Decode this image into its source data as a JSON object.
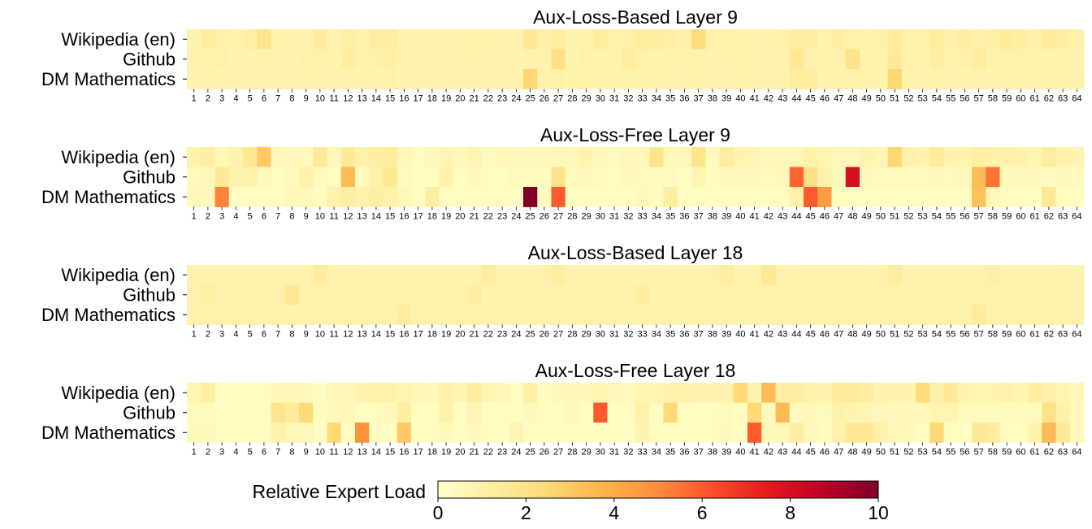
{
  "chart_data": [
    {
      "type": "heatmap",
      "title": "Aux-Loss-Based Layer 9",
      "rows": [
        "Wikipedia (en)",
        "Github",
        "DM Mathematics"
      ],
      "columns": [
        1,
        2,
        3,
        4,
        5,
        6,
        7,
        8,
        9,
        10,
        11,
        12,
        13,
        14,
        15,
        16,
        17,
        18,
        19,
        20,
        21,
        22,
        23,
        24,
        25,
        26,
        27,
        28,
        29,
        30,
        31,
        32,
        33,
        34,
        35,
        36,
        37,
        38,
        39,
        40,
        41,
        42,
        43,
        44,
        45,
        46,
        47,
        48,
        49,
        50,
        51,
        52,
        53,
        54,
        55,
        56,
        57,
        58,
        59,
        60,
        61,
        62,
        63,
        64
      ],
      "values": [
        [
          0.8,
          1.2,
          1.0,
          0.9,
          1.1,
          1.8,
          0.9,
          0.9,
          0.8,
          1.3,
          0.8,
          1.1,
          0.9,
          1.2,
          1.3,
          0.9,
          0.8,
          0.8,
          0.8,
          0.8,
          0.9,
          0.9,
          0.8,
          0.8,
          1.6,
          1.0,
          1.2,
          0.8,
          0.9,
          1.3,
          1.0,
          1.0,
          1.3,
          1.3,
          1.1,
          1.0,
          2.3,
          1.0,
          1.0,
          0.9,
          0.9,
          0.8,
          1.0,
          1.2,
          1.2,
          0.9,
          1.2,
          1.0,
          0.9,
          1.0,
          1.4,
          1.0,
          1.0,
          1.3,
          1.0,
          1.2,
          1.0,
          1.1,
          1.4,
          1.2,
          1.0,
          1.4,
          1.2,
          1.0
        ],
        [
          0.9,
          0.9,
          1.0,
          0.8,
          0.8,
          0.9,
          0.8,
          0.8,
          1.0,
          1.0,
          0.8,
          1.2,
          0.9,
          1.0,
          1.1,
          0.8,
          0.8,
          0.9,
          0.8,
          0.8,
          0.9,
          0.8,
          0.8,
          0.8,
          0.9,
          0.9,
          2.0,
          0.8,
          1.0,
          0.8,
          0.9,
          1.3,
          1.0,
          0.9,
          0.9,
          0.9,
          0.9,
          0.8,
          0.9,
          0.9,
          0.9,
          0.8,
          0.8,
          1.6,
          0.9,
          0.9,
          0.9,
          1.9,
          0.9,
          0.9,
          1.5,
          0.9,
          0.9,
          1.2,
          0.9,
          1.0,
          1.3,
          0.9,
          1.0,
          1.0,
          0.9,
          0.9,
          0.9,
          0.8
        ],
        [
          0.8,
          0.8,
          0.8,
          0.8,
          0.8,
          0.8,
          0.8,
          0.8,
          0.9,
          0.8,
          0.8,
          0.8,
          0.8,
          0.8,
          1.0,
          0.8,
          0.8,
          0.8,
          0.8,
          0.8,
          0.8,
          0.8,
          0.8,
          0.8,
          2.6,
          0.9,
          1.0,
          0.8,
          0.9,
          0.9,
          0.9,
          0.9,
          0.9,
          0.9,
          0.8,
          0.8,
          0.9,
          0.8,
          0.8,
          0.9,
          0.8,
          0.8,
          0.9,
          1.3,
          1.3,
          0.8,
          0.9,
          1.0,
          0.9,
          0.8,
          2.6,
          0.9,
          0.8,
          0.9,
          0.8,
          0.8,
          0.9,
          0.8,
          0.9,
          0.9,
          0.8,
          0.9,
          0.9,
          0.9
        ]
      ],
      "xticks_every_column": true,
      "grid": false
    },
    {
      "type": "heatmap",
      "title": "Aux-Loss-Free Layer 9",
      "rows": [
        "Wikipedia (en)",
        "Github",
        "DM Mathematics"
      ],
      "columns": [
        1,
        2,
        3,
        4,
        5,
        6,
        7,
        8,
        9,
        10,
        11,
        12,
        13,
        14,
        15,
        16,
        17,
        18,
        19,
        20,
        21,
        22,
        23,
        24,
        25,
        26,
        27,
        28,
        29,
        30,
        31,
        32,
        33,
        34,
        35,
        36,
        37,
        38,
        39,
        40,
        41,
        42,
        43,
        44,
        45,
        46,
        47,
        48,
        49,
        50,
        51,
        52,
        53,
        54,
        55,
        56,
        57,
        58,
        59,
        60,
        61,
        62,
        63,
        64
      ],
      "values": [
        [
          0.9,
          1.2,
          0.6,
          0.8,
          1.6,
          3.0,
          0.6,
          0.5,
          0.4,
          1.5,
          0.6,
          1.5,
          1.0,
          1.2,
          1.3,
          0.6,
          0.3,
          0.6,
          0.7,
          0.5,
          0.7,
          0.4,
          0.5,
          0.5,
          0.5,
          0.6,
          0.6,
          0.6,
          0.8,
          0.6,
          0.4,
          0.6,
          0.6,
          1.9,
          0.6,
          0.6,
          1.8,
          0.4,
          1.3,
          0.8,
          0.7,
          0.6,
          0.5,
          0.6,
          1.0,
          0.7,
          0.6,
          0.6,
          0.8,
          0.6,
          2.6,
          1.0,
          0.8,
          1.4,
          0.8,
          0.8,
          1.1,
          1.0,
          1.0,
          0.9,
          0.7,
          1.3,
          0.9,
          0.8
        ],
        [
          0.4,
          0.6,
          1.5,
          1.0,
          0.9,
          0.5,
          0.3,
          0.4,
          1.0,
          0.4,
          0.3,
          3.5,
          0.4,
          1.0,
          1.6,
          0.4,
          0.3,
          0.3,
          1.0,
          0.3,
          0.5,
          0.3,
          0.3,
          0.4,
          0.4,
          0.3,
          1.9,
          0.4,
          0.5,
          0.4,
          0.3,
          0.5,
          0.4,
          0.4,
          0.4,
          0.3,
          0.7,
          0.3,
          0.5,
          0.5,
          0.5,
          0.4,
          0.6,
          5.8,
          2.0,
          1.0,
          0.5,
          8.0,
          0.5,
          0.4,
          0.4,
          0.4,
          0.4,
          0.5,
          0.4,
          0.5,
          3.5,
          5.5,
          0.5,
          0.5,
          0.5,
          0.4,
          0.5,
          0.4
        ],
        [
          0.5,
          0.5,
          5.2,
          0.3,
          0.3,
          0.3,
          0.3,
          0.5,
          0.5,
          0.3,
          1.0,
          1.2,
          1.0,
          1.2,
          1.0,
          0.6,
          0.3,
          1.2,
          0.3,
          0.3,
          0.3,
          0.3,
          0.3,
          0.3,
          10.0,
          0.4,
          6.0,
          0.3,
          0.3,
          0.3,
          0.3,
          0.3,
          0.5,
          0.3,
          1.3,
          0.3,
          0.3,
          0.3,
          0.3,
          0.3,
          0.3,
          0.3,
          0.3,
          1.0,
          6.0,
          4.5,
          0.3,
          0.3,
          0.3,
          0.3,
          0.3,
          0.3,
          0.3,
          0.3,
          0.3,
          0.3,
          3.3,
          0.6,
          0.3,
          0.3,
          0.3,
          1.6,
          0.3,
          0.3
        ]
      ],
      "xticks_every_column": true,
      "grid": false
    },
    {
      "type": "heatmap",
      "title": "Aux-Loss-Based Layer 18",
      "rows": [
        "Wikipedia (en)",
        "Github",
        "DM Mathematics"
      ],
      "columns": [
        1,
        2,
        3,
        4,
        5,
        6,
        7,
        8,
        9,
        10,
        11,
        12,
        13,
        14,
        15,
        16,
        17,
        18,
        19,
        20,
        21,
        22,
        23,
        24,
        25,
        26,
        27,
        28,
        29,
        30,
        31,
        32,
        33,
        34,
        35,
        36,
        37,
        38,
        39,
        40,
        41,
        42,
        43,
        44,
        45,
        46,
        47,
        48,
        49,
        50,
        51,
        52,
        53,
        54,
        55,
        56,
        57,
        58,
        59,
        60,
        61,
        62,
        63,
        64
      ],
      "values": [
        [
          0.9,
          0.9,
          0.9,
          0.9,
          0.9,
          0.9,
          0.9,
          0.9,
          0.9,
          1.4,
          0.9,
          1.0,
          0.9,
          0.9,
          0.9,
          0.9,
          0.9,
          0.9,
          0.9,
          0.9,
          0.9,
          1.3,
          0.9,
          0.9,
          0.9,
          1.0,
          1.2,
          0.9,
          0.9,
          0.9,
          0.9,
          0.9,
          0.9,
          1.0,
          0.9,
          0.9,
          0.9,
          1.0,
          1.2,
          0.9,
          0.9,
          1.6,
          0.9,
          0.9,
          1.0,
          1.0,
          1.0,
          1.0,
          0.9,
          0.9,
          1.3,
          0.9,
          0.9,
          0.9,
          0.9,
          0.9,
          0.9,
          1.1,
          0.9,
          0.9,
          0.9,
          0.9,
          1.0,
          0.9
        ],
        [
          0.9,
          1.1,
          0.9,
          0.9,
          0.9,
          0.9,
          0.9,
          1.6,
          0.9,
          0.9,
          0.9,
          0.9,
          0.9,
          0.9,
          0.9,
          0.9,
          0.9,
          0.9,
          0.9,
          0.9,
          1.2,
          0.9,
          0.9,
          0.9,
          0.9,
          0.9,
          0.9,
          0.9,
          0.9,
          1.0,
          0.9,
          0.9,
          1.2,
          0.9,
          0.9,
          0.9,
          0.9,
          0.9,
          0.9,
          0.9,
          0.9,
          0.9,
          0.9,
          0.9,
          0.9,
          0.9,
          0.9,
          0.9,
          0.9,
          0.9,
          0.9,
          0.9,
          0.9,
          0.9,
          0.9,
          0.9,
          0.9,
          1.0,
          0.9,
          0.9,
          0.9,
          0.9,
          0.9,
          0.9
        ],
        [
          0.9,
          0.9,
          0.9,
          0.9,
          0.9,
          0.9,
          0.9,
          0.9,
          0.9,
          0.9,
          0.9,
          0.9,
          0.9,
          0.9,
          0.9,
          1.3,
          0.9,
          0.9,
          0.9,
          0.9,
          0.9,
          0.9,
          0.9,
          0.9,
          0.9,
          0.9,
          0.9,
          0.9,
          0.9,
          0.9,
          0.9,
          0.9,
          0.9,
          0.9,
          0.9,
          0.9,
          0.9,
          0.9,
          0.9,
          0.9,
          0.9,
          0.9,
          0.9,
          0.9,
          0.9,
          0.9,
          0.9,
          0.9,
          0.9,
          0.9,
          0.9,
          0.9,
          0.9,
          0.9,
          0.9,
          0.9,
          1.4,
          0.9,
          0.9,
          0.9,
          0.9,
          0.9,
          0.9,
          0.9
        ]
      ],
      "xticks_every_column": true,
      "grid": false
    },
    {
      "type": "heatmap",
      "title": "Aux-Loss-Free Layer 18",
      "rows": [
        "Wikipedia (en)",
        "Github",
        "DM Mathematics"
      ],
      "columns": [
        1,
        2,
        3,
        4,
        5,
        6,
        7,
        8,
        9,
        10,
        11,
        12,
        13,
        14,
        15,
        16,
        17,
        18,
        19,
        20,
        21,
        22,
        23,
        24,
        25,
        26,
        27,
        28,
        29,
        30,
        31,
        32,
        33,
        34,
        35,
        36,
        37,
        38,
        39,
        40,
        41,
        42,
        43,
        44,
        45,
        46,
        47,
        48,
        49,
        50,
        51,
        52,
        53,
        54,
        55,
        56,
        57,
        58,
        59,
        60,
        61,
        62,
        63,
        64
      ],
      "values": [
        [
          0.7,
          1.2,
          0.3,
          0.3,
          0.3,
          0.3,
          0.5,
          0.6,
          0.5,
          0.3,
          0.6,
          0.6,
          0.8,
          1.0,
          1.0,
          0.7,
          0.6,
          0.5,
          1.0,
          0.7,
          1.2,
          0.7,
          0.6,
          0.3,
          1.1,
          0.3,
          0.5,
          0.5,
          0.5,
          0.7,
          0.5,
          0.4,
          0.7,
          0.7,
          0.9,
          0.9,
          0.8,
          0.8,
          0.8,
          2.5,
          0.9,
          3.5,
          1.2,
          1.2,
          0.9,
          0.8,
          1.4,
          1.4,
          1.2,
          0.8,
          0.8,
          0.8,
          2.3,
          1.0,
          1.5,
          0.8,
          0.7,
          0.8,
          0.9,
          0.7,
          1.2,
          1.0,
          0.7,
          0.6
        ],
        [
          0.4,
          0.4,
          0.3,
          0.3,
          0.3,
          0.3,
          1.8,
          1.4,
          2.4,
          0.3,
          0.5,
          0.5,
          0.3,
          0.3,
          0.5,
          1.2,
          0.3,
          0.3,
          1.0,
          0.3,
          0.7,
          0.3,
          0.3,
          0.3,
          0.5,
          0.3,
          0.3,
          0.5,
          0.3,
          6.0,
          0.3,
          0.3,
          1.0,
          0.3,
          2.5,
          0.3,
          0.3,
          0.3,
          0.4,
          0.3,
          2.5,
          0.4,
          3.5,
          0.4,
          0.5,
          0.4,
          1.0,
          0.8,
          0.7,
          0.6,
          0.5,
          0.5,
          0.5,
          0.7,
          0.7,
          0.4,
          0.4,
          0.4,
          0.4,
          0.4,
          0.4,
          2.0,
          1.0,
          0.5
        ],
        [
          0.5,
          0.5,
          0.3,
          0.3,
          0.3,
          0.3,
          1.0,
          0.6,
          0.6,
          0.3,
          2.5,
          0.3,
          4.8,
          0.3,
          0.3,
          3.0,
          0.3,
          0.3,
          0.5,
          0.3,
          0.5,
          0.3,
          0.3,
          0.7,
          0.3,
          0.3,
          0.3,
          0.3,
          0.3,
          0.3,
          0.3,
          0.3,
          0.8,
          0.3,
          0.3,
          0.3,
          0.3,
          0.3,
          0.5,
          0.3,
          6.0,
          0.5,
          0.5,
          1.2,
          0.5,
          0.3,
          0.9,
          1.5,
          1.5,
          1.0,
          0.5,
          0.5,
          0.3,
          2.5,
          0.3,
          0.3,
          1.5,
          1.3,
          0.3,
          0.3,
          0.8,
          3.5,
          1.5,
          0.5
        ]
      ],
      "xticks_every_column": true,
      "grid": false
    }
  ],
  "colorbar": {
    "label": "Relative Expert Load",
    "min": 0,
    "max": 10,
    "ticks": [
      0,
      2,
      4,
      6,
      8,
      10
    ],
    "orientation": "horizontal",
    "colormap": "YlOrRd",
    "colormap_stops": [
      "#ffffcc",
      "#ffeda0",
      "#fed976",
      "#feb24c",
      "#fd8d3c",
      "#fc4e2a",
      "#e31a1c",
      "#bd0026",
      "#800026"
    ]
  }
}
